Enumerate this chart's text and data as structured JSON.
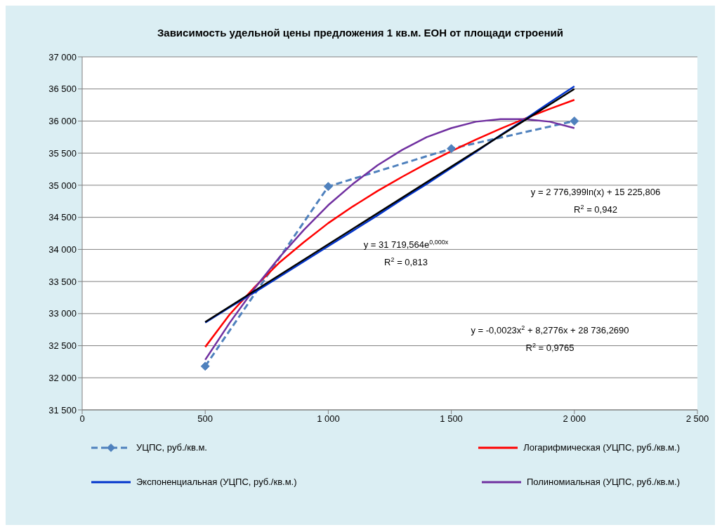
{
  "chart_data": {
    "type": "line",
    "title": "Зависимость  удельной  цены предложения 1 кв.м. ЕОН от  площади строений",
    "xlim": [
      0,
      2500
    ],
    "xticks": [
      0,
      500,
      {
        "value": 1000,
        "label": "1 000"
      },
      {
        "value": 1500,
        "label": "1 500"
      },
      {
        "value": 2000,
        "label": "2 000"
      },
      {
        "value": 2500,
        "label": "2 500"
      }
    ],
    "ylim": [
      31500,
      37000
    ],
    "yticks": [
      {
        "value": 31500,
        "label": "31 500"
      },
      {
        "value": 32000,
        "label": "32 000"
      },
      {
        "value": 32500,
        "label": "32 500"
      },
      {
        "value": 33000,
        "label": "33 000"
      },
      {
        "value": 33500,
        "label": "33 500"
      },
      {
        "value": 34000,
        "label": "34 000"
      },
      {
        "value": 34500,
        "label": "34 500"
      },
      {
        "value": 35000,
        "label": "35 000"
      },
      {
        "value": 35500,
        "label": "35 500"
      },
      {
        "value": 36000,
        "label": "36 000"
      },
      {
        "value": 36500,
        "label": "36 500"
      },
      {
        "value": 37000,
        "label": "37 000"
      }
    ],
    "grid": "y",
    "legend": "bottom",
    "series": [
      {
        "name": "УЦПС, руб./кв.м.",
        "color": "#4f81bd",
        "marker": "diamond",
        "line_style": "dashed",
        "x": [
          500,
          1000,
          1500,
          2000
        ],
        "values": [
          32180,
          34980,
          35570,
          36000
        ]
      },
      {
        "name": "Логарифмическая (УЦПС, руб./кв.м.)",
        "color": "#ff0000",
        "marker": "none",
        "line_style": "solid",
        "x": [
          500,
          600,
          700,
          800,
          900,
          1000,
          1100,
          1200,
          1300,
          1400,
          1500,
          1600,
          1700,
          1800,
          1900,
          2000
        ],
        "values": [
          32480,
          32990,
          33410,
          33790,
          34110,
          34410,
          34670,
          34910,
          35130,
          35340,
          35530,
          35710,
          35880,
          36040,
          36190,
          36330
        ]
      },
      {
        "name": "Экспоненциальная (УЦПС, руб./кв.м.)",
        "color": "#0033cc",
        "marker": "none",
        "line_style": "solid",
        "x": [
          500,
          600,
          700,
          800,
          900,
          1000,
          1100,
          1200,
          1300,
          1400,
          1500,
          1600,
          1700,
          1800,
          1900,
          2000
        ],
        "values": [
          32860,
          33100,
          33330,
          33570,
          33810,
          34050,
          34290,
          34530,
          34780,
          35020,
          35270,
          35520,
          35780,
          36030,
          36290,
          36540
        ]
      },
      {
        "name": "Полиномиальная (УЦПС, руб./кв.м.)",
        "color": "#7030a0",
        "marker": "none",
        "line_style": "solid",
        "x": [
          500,
          600,
          700,
          800,
          900,
          1000,
          1100,
          1200,
          1300,
          1400,
          1500,
          1600,
          1700,
          1800,
          1900,
          2000
        ],
        "values": [
          32280,
          32860,
          33390,
          33870,
          34300,
          34690,
          35020,
          35310,
          35550,
          35750,
          35890,
          35990,
          36030,
          36030,
          35990,
          35890
        ]
      },
      {
        "color": "#000000",
        "marker": "none",
        "line_style": "solid",
        "x": [
          500,
          2000
        ],
        "values": [
          32870,
          36500
        ]
      }
    ],
    "annotations": [
      "y = 2 776,399ln(x) + 15 225,806",
      "R$^{2}$ = 0,942",
      "y = 31 719,564e$^{0,000x}$",
      "R$^{2}$ = 0,813",
      "y = -0,0023x$^{2}$ + 8,2776x + 28 736,2690",
      "R$^{2}$ = 0,9765"
    ]
  }
}
